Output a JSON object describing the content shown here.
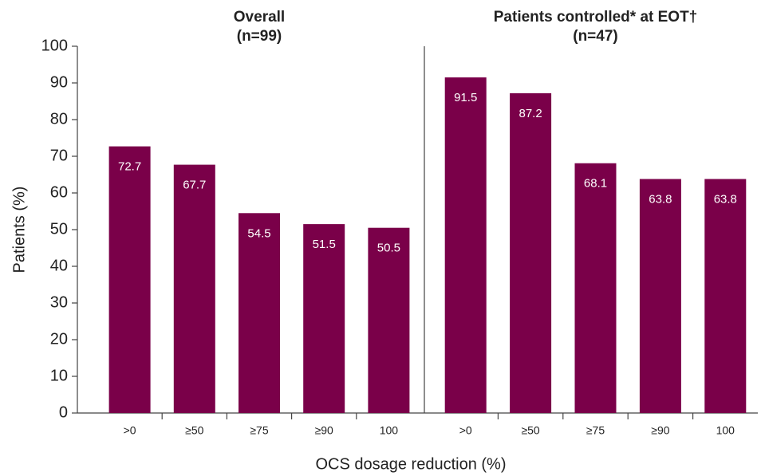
{
  "chart_data": {
    "type": "bar",
    "ylabel": "Patients (%)",
    "xlabel": "OCS dosage reduction (%)",
    "ylim": [
      0,
      100
    ],
    "yticks": [
      0,
      10,
      20,
      30,
      40,
      50,
      60,
      70,
      80,
      90,
      100
    ],
    "color": "#7a0049",
    "groups": [
      {
        "title": "Overall",
        "subtitle": "(n=99)",
        "categories": [
          ">0",
          "≥50",
          "≥75",
          "≥90",
          "100"
        ],
        "values": [
          72.7,
          67.7,
          54.5,
          51.5,
          50.5
        ]
      },
      {
        "title": "Patients controlled* at EOT†",
        "subtitle": "(n=47)",
        "categories": [
          ">0",
          "≥50",
          "≥75",
          "≥90",
          "100"
        ],
        "values": [
          91.5,
          87.2,
          68.1,
          63.8,
          63.8
        ]
      }
    ]
  }
}
